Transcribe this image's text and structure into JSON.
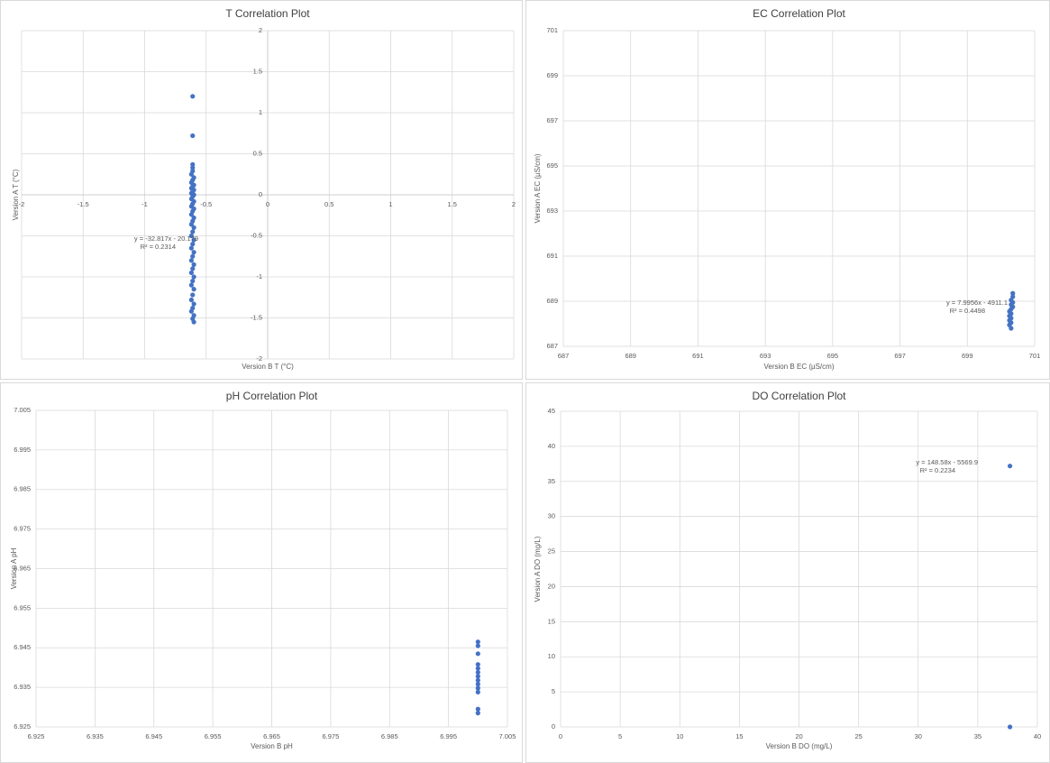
{
  "chart_data": [
    {
      "type": "scatter",
      "title": "T Correlation Plot",
      "x_label": "Version B T (°C)",
      "y_label": "Version A T (°C)",
      "color": "#4472c4",
      "grid": true,
      "xlim": [
        -2,
        2
      ],
      "xticks": [
        -2,
        -1.5,
        -1,
        -0.5,
        0,
        0.5,
        1,
        1.5,
        2
      ],
      "ylim": [
        -2,
        2
      ],
      "yticks": [
        -2,
        -1.5,
        -1,
        -0.5,
        0,
        0.5,
        1,
        1.5,
        2
      ],
      "x": [
        -0.61,
        -0.61,
        -0.61,
        -0.61,
        -0.61,
        -0.62,
        -0.6,
        -0.61,
        -0.62,
        -0.6,
        -0.61,
        -0.62,
        -0.6,
        -0.61,
        -0.62,
        -0.6,
        -0.61,
        -0.62,
        -0.6,
        -0.61,
        -0.62,
        -0.6,
        -0.61,
        -0.62,
        -0.6,
        -0.61,
        -0.62,
        -0.6,
        -0.61,
        -0.62,
        -0.6,
        -0.61,
        -0.62,
        -0.6,
        -0.61,
        -0.62,
        -0.6,
        -0.61,
        -0.62,
        -0.6,
        -0.61,
        -0.62,
        -0.6,
        -0.61,
        -0.62,
        -0.6,
        -0.61,
        -0.62,
        -0.6,
        -0.61,
        -0.6
      ],
      "values": [
        1.2,
        0.72,
        0.37,
        0.33,
        0.29,
        0.25,
        0.21,
        0.18,
        0.15,
        0.12,
        0.1,
        0.08,
        0.06,
        0.04,
        0.02,
        0,
        -0.02,
        -0.05,
        -0.08,
        -0.11,
        -0.14,
        -0.17,
        -0.2,
        -0.24,
        -0.28,
        -0.32,
        -0.36,
        -0.4,
        -0.45,
        -0.5,
        -0.55,
        -0.6,
        -0.65,
        -0.7,
        -0.75,
        -0.8,
        -0.85,
        -0.9,
        -0.95,
        -1.0,
        -1.05,
        -1.1,
        -1.15,
        -1.22,
        -1.28,
        -1.33,
        -1.38,
        -1.42,
        -1.47,
        -1.51,
        -1.55
      ],
      "annotations": [
        "y = -32.817x - 20.179",
        "R² = 0.2314"
      ]
    },
    {
      "type": "scatter",
      "title": "EC Correlation Plot",
      "x_label": "Version B EC (µS/cm)",
      "y_label": "Version A EC (µS/cm)",
      "color": "#4472c4",
      "grid": true,
      "xlim": [
        687,
        701
      ],
      "xticks": [
        687,
        689,
        691,
        693,
        695,
        697,
        699,
        701
      ],
      "ylim": [
        687,
        701
      ],
      "yticks": [
        687,
        689,
        691,
        693,
        695,
        697,
        699,
        701
      ],
      "x": [
        700.35,
        700.35,
        700.3,
        700.35,
        700.3,
        700.35,
        700.3,
        700.25,
        700.3,
        700.25,
        700.3,
        700.25,
        700.3,
        700.25,
        700.3
      ],
      "values": [
        689.35,
        689.2,
        689.05,
        688.95,
        688.85,
        688.75,
        688.65,
        688.55,
        688.45,
        688.35,
        688.25,
        688.15,
        688.05,
        687.95,
        687.8
      ],
      "annotations": [
        "y = 7.9956x - 4911.1",
        "R² = 0.4498"
      ]
    },
    {
      "type": "scatter",
      "title": "pH Correlation Plot",
      "x_label": "Version B pH",
      "y_label": "Version A pH",
      "color": "#4472c4",
      "grid": true,
      "xlim": [
        6.925,
        7.005
      ],
      "xticks": [
        6.925,
        6.935,
        6.945,
        6.955,
        6.965,
        6.975,
        6.985,
        6.995,
        7.005
      ],
      "ylim": [
        6.925,
        7.005
      ],
      "yticks": [
        6.925,
        6.935,
        6.945,
        6.955,
        6.965,
        6.975,
        6.985,
        6.995,
        7.005
      ],
      "x": [
        7.0,
        7.0,
        7.0,
        7.0,
        7.0,
        7.0,
        7.0,
        7.0,
        7.0,
        7.0,
        7.0,
        7.0,
        7.0
      ],
      "values": [
        6.9465,
        6.9455,
        6.9435,
        6.9408,
        6.9398,
        6.9388,
        6.9378,
        6.9368,
        6.9358,
        6.9348,
        6.9338,
        6.9295,
        6.9285
      ]
    },
    {
      "type": "scatter",
      "title": "DO Correlation Plot",
      "x_label": "Version B DO (mg/L)",
      "y_label": "Version A DO (mg/L)",
      "color": "#4472c4",
      "grid": true,
      "xlim": [
        0,
        40
      ],
      "xticks": [
        0,
        5,
        10,
        15,
        20,
        25,
        30,
        35,
        40
      ],
      "ylim": [
        0,
        45
      ],
      "yticks": [
        0,
        5,
        10,
        15,
        20,
        25,
        30,
        35,
        40,
        45
      ],
      "x": [
        37.7,
        37.7
      ],
      "values": [
        37.2,
        0
      ],
      "annotations": [
        "y = 148.58x - 5569.9",
        "R² = 0.2234"
      ]
    }
  ]
}
